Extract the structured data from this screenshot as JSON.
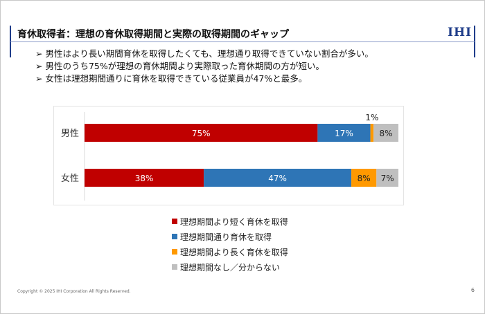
{
  "slide": {
    "title": "育休取得者：理想の育休取得期間と実際の取得期間のギャップ",
    "logo": "IHI",
    "bullets": [
      "男性はより長い期間育休を取得したくても、理想通り取得できていない割合が多い。",
      "男性のうち75%が理想の育休期間より実際取った育休期間の方が短い。",
      "女性は理想期間通りに育休を取得できている従業員が47%と最多。"
    ],
    "copyright": "Copyright © 2025 IHI Corporation All Rights Reserved.",
    "page": "6"
  },
  "chart_data": {
    "type": "bar",
    "orientation": "horizontal",
    "stacked": true,
    "unit": "%",
    "categories": [
      "男性",
      "女性"
    ],
    "series": [
      {
        "name": "理想期間より短く育休を取得",
        "color": "#c00000",
        "values": [
          75,
          38
        ]
      },
      {
        "name": "理想期間通り育休を取得",
        "color": "#2e75b6",
        "values": [
          17,
          47
        ]
      },
      {
        "name": "理想期間より長く育休を取得",
        "color": "#ff9900",
        "values": [
          1,
          8
        ]
      },
      {
        "name": "理想期間なし／分からない",
        "color": "#bfbfbf",
        "values": [
          8,
          7
        ]
      }
    ],
    "data_labels": [
      [
        "75%",
        "17%",
        "1%",
        "8%"
      ],
      [
        "38%",
        "47%",
        "8%",
        "7%"
      ]
    ],
    "legend": "bottom",
    "grid": false
  }
}
